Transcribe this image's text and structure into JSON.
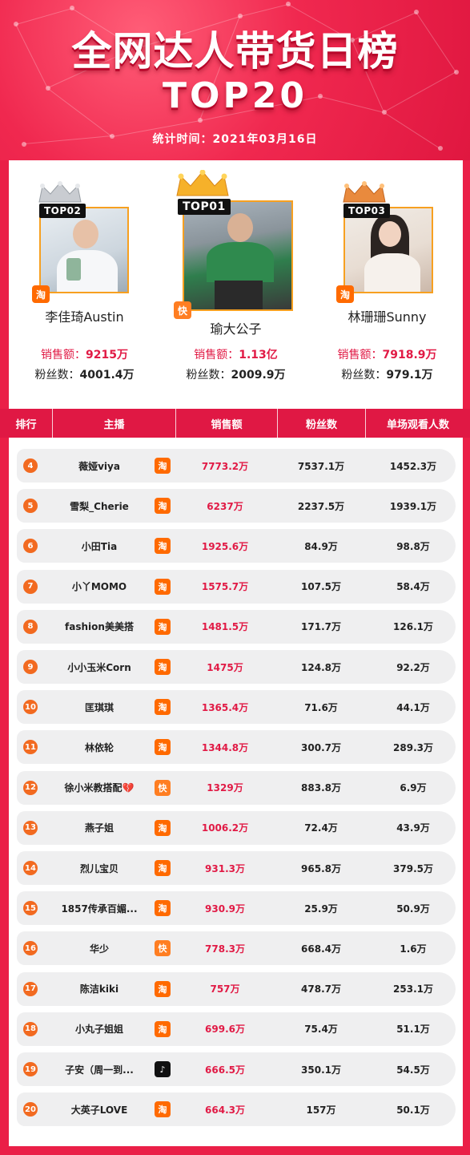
{
  "header": {
    "title": "全网达人带货日榜",
    "subtitle": "TOP20",
    "date_label": "统计时间：2021年03月16日"
  },
  "podium": [
    {
      "rank_tag": "TOP02",
      "name": "李佳琦Austin",
      "sales_label": "销售额：",
      "sales": "9215万",
      "fans_label": "粉丝数：",
      "fans": "4001.4万",
      "platform": "taobao",
      "platform_glyph": "淘",
      "crown_color": "#c9ccd1"
    },
    {
      "rank_tag": "TOP01",
      "name": "瑜大公子",
      "sales_label": "销售额：",
      "sales": "1.13亿",
      "fans_label": "粉丝数：",
      "fans": "2009.9万",
      "platform": "kuaishou",
      "platform_glyph": "快",
      "crown_color": "#f6b12a"
    },
    {
      "rank_tag": "TOP03",
      "name": "林珊珊Sunny",
      "sales_label": "销售额：",
      "sales": "7918.9万",
      "fans_label": "粉丝数：",
      "fans": "979.1万",
      "platform": "taobao",
      "platform_glyph": "淘",
      "crown_color": "#e98a3d"
    }
  ],
  "table": {
    "columns": [
      "排行",
      "主播",
      "销售额",
      "粉丝数",
      "单场观看人数"
    ],
    "rows": [
      {
        "rank": "4",
        "name": "薇娅viya",
        "platform": "taobao",
        "glyph": "淘",
        "sales": "7773.2万",
        "fans": "7537.1万",
        "views": "1452.3万"
      },
      {
        "rank": "5",
        "name": "雪梨_Cherie",
        "platform": "taobao",
        "glyph": "淘",
        "sales": "6237万",
        "fans": "2237.5万",
        "views": "1939.1万"
      },
      {
        "rank": "6",
        "name": "小田Tia",
        "platform": "taobao",
        "glyph": "淘",
        "sales": "1925.6万",
        "fans": "84.9万",
        "views": "98.8万"
      },
      {
        "rank": "7",
        "name": "小丫MOMO",
        "platform": "taobao",
        "glyph": "淘",
        "sales": "1575.7万",
        "fans": "107.5万",
        "views": "58.4万"
      },
      {
        "rank": "8",
        "name": "fashion美美搭",
        "platform": "taobao",
        "glyph": "淘",
        "sales": "1481.5万",
        "fans": "171.7万",
        "views": "126.1万"
      },
      {
        "rank": "9",
        "name": "小小玉米Corn",
        "platform": "taobao",
        "glyph": "淘",
        "sales": "1475万",
        "fans": "124.8万",
        "views": "92.2万"
      },
      {
        "rank": "10",
        "name": "匡琪琪",
        "platform": "taobao",
        "glyph": "淘",
        "sales": "1365.4万",
        "fans": "71.6万",
        "views": "44.1万"
      },
      {
        "rank": "11",
        "name": "林依轮",
        "platform": "taobao",
        "glyph": "淘",
        "sales": "1344.8万",
        "fans": "300.7万",
        "views": "289.3万"
      },
      {
        "rank": "12",
        "name": "徐小米教搭配💔",
        "platform": "kuaishou",
        "glyph": "快",
        "sales": "1329万",
        "fans": "883.8万",
        "views": "6.9万"
      },
      {
        "rank": "13",
        "name": "燕子姐",
        "platform": "taobao",
        "glyph": "淘",
        "sales": "1006.2万",
        "fans": "72.4万",
        "views": "43.9万"
      },
      {
        "rank": "14",
        "name": "烈儿宝贝",
        "platform": "taobao",
        "glyph": "淘",
        "sales": "931.3万",
        "fans": "965.8万",
        "views": "379.5万"
      },
      {
        "rank": "15",
        "name": "1857传承百媚...",
        "platform": "taobao",
        "glyph": "淘",
        "sales": "930.9万",
        "fans": "25.9万",
        "views": "50.9万"
      },
      {
        "rank": "16",
        "name": "华少",
        "platform": "kuaishou",
        "glyph": "快",
        "sales": "778.3万",
        "fans": "668.4万",
        "views": "1.6万"
      },
      {
        "rank": "17",
        "name": "陈洁kiki",
        "platform": "taobao",
        "glyph": "淘",
        "sales": "757万",
        "fans": "478.7万",
        "views": "253.1万"
      },
      {
        "rank": "18",
        "name": "小丸子姐姐",
        "platform": "taobao",
        "glyph": "淘",
        "sales": "699.6万",
        "fans": "75.4万",
        "views": "51.1万"
      },
      {
        "rank": "19",
        "name": "子安（周一到...",
        "platform": "douyin",
        "glyph": "♪",
        "sales": "666.5万",
        "fans": "350.1万",
        "views": "54.5万"
      },
      {
        "rank": "20",
        "name": "大英子LOVE",
        "platform": "taobao",
        "glyph": "淘",
        "sales": "664.3万",
        "fans": "157万",
        "views": "50.1万"
      }
    ]
  },
  "colors": {
    "brand_red": "#e01844",
    "sales_red": "#e11a45",
    "taobao_orange": "#ff6a00",
    "rank_orange": "#f26a20",
    "row_bg": "#efeff0"
  }
}
